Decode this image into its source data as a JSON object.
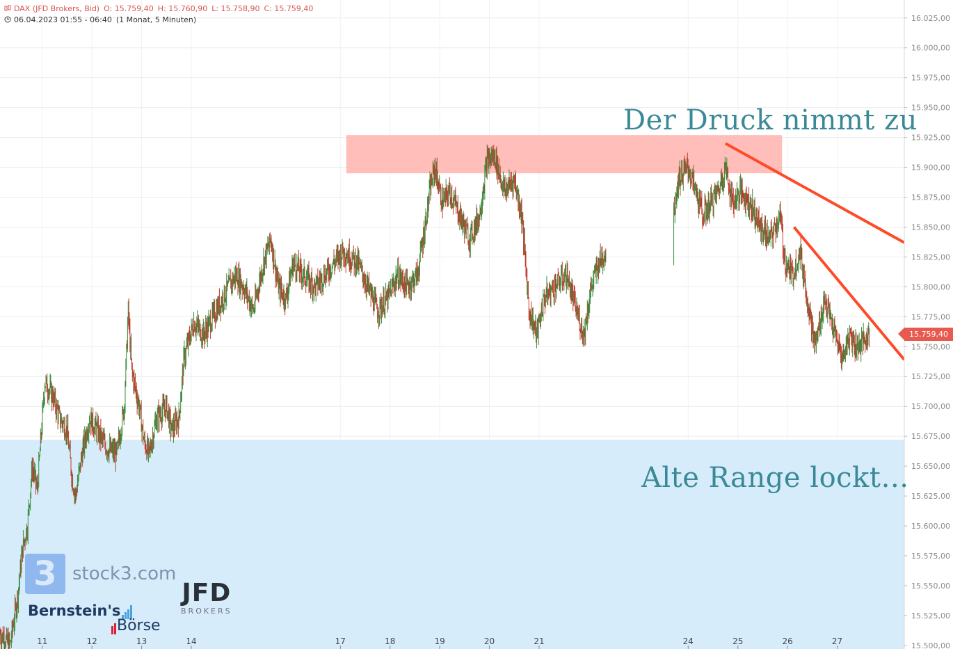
{
  "header": {
    "instrument": "DAX (JFD Brokers, Bid)",
    "open": "O: 15.759,40",
    "high": "H: 15.760,90",
    "low": "L: 15.758,90",
    "close": "C: 15.759,40",
    "range": "06.04.2023 01:55 - 06:40",
    "interval": "(1 Monat, 5 Minuten)"
  },
  "annotations": {
    "top": "Der Druck nimmt zu",
    "bottom": "Alte Range lockt…"
  },
  "last_price": "15.759,40",
  "logos": {
    "stock3_mark": "3",
    "stock3_text": "stock3.com",
    "bernstein_line1": "Bernstein's",
    "bernstein_line2": "Börse",
    "jfd_line1": "JFD",
    "jfd_line2": "BROKERS"
  },
  "colors": {
    "up_candle": "#3a8a3a",
    "down_candle": "#c0392b",
    "resistance_zone": "#ffb3ad",
    "support_zone": "#d6ecfb",
    "trendline": "#ff4a28",
    "annotation_text": "#3a8996",
    "price_tag": "#e85a4f"
  },
  "chart_data": {
    "type": "candlestick",
    "x_tick_labels": [
      "11",
      "12",
      "13",
      "14",
      "17",
      "18",
      "19",
      "20",
      "21",
      "24",
      "25",
      "26",
      "27"
    ],
    "y_ticks": [
      15500,
      15525,
      15550,
      15575,
      15600,
      15625,
      15650,
      15675,
      15700,
      15725,
      15750,
      15775,
      15800,
      15825,
      15850,
      15875,
      15900,
      15925,
      15950,
      15975,
      16000,
      16025
    ],
    "y_tick_labels": [
      "15.500,00",
      "15.525,00",
      "15.550,00",
      "15.575,00",
      "15.600,00",
      "15.625,00",
      "15.650,00",
      "15.675,00",
      "15.700,00",
      "15.725,00",
      "15.750,00",
      "15.775,00",
      "15.800,00",
      "15.825,00",
      "15.850,00",
      "15.875,00",
      "15.900,00",
      "15.925,00",
      "15.950,00",
      "15.975,00",
      "16.000,00",
      "16.025,00"
    ],
    "ylim": [
      15497,
      16040
    ],
    "x_domain": [
      10.1,
      28.3
    ],
    "zones": [
      {
        "kind": "resistance",
        "x_from": 17.07,
        "x_to": 25.84,
        "y_from": 15895,
        "y_to": 15927
      },
      {
        "kind": "support",
        "x_from": 10.1,
        "x_to": 28.3,
        "y_from": 15497,
        "y_to": 15672
      }
    ],
    "trendlines": [
      {
        "x1": 24.7,
        "y1": 15920,
        "x2": 28.3,
        "y2": 15837
      },
      {
        "x1": 26.08,
        "y1": 15850,
        "x2": 28.3,
        "y2": 15739
      }
    ],
    "price_path": [
      [
        10.1,
        15510
      ],
      [
        10.3,
        15500
      ],
      [
        10.45,
        15540
      ],
      [
        10.55,
        15580
      ],
      [
        10.65,
        15600
      ],
      [
        10.75,
        15650
      ],
      [
        10.85,
        15630
      ],
      [
        11.0,
        15720
      ],
      [
        11.15,
        15710
      ],
      [
        11.3,
        15690
      ],
      [
        11.45,
        15680
      ],
      [
        11.55,
        15640
      ],
      [
        11.62,
        15625
      ],
      [
        11.75,
        15660
      ],
      [
        11.9,
        15690
      ],
      [
        12.05,
        15680
      ],
      [
        12.25,
        15665
      ],
      [
        12.45,
        15660
      ],
      [
        12.6,
        15700
      ],
      [
        12.68,
        15780
      ],
      [
        12.75,
        15730
      ],
      [
        12.9,
        15700
      ],
      [
        13.0,
        15670
      ],
      [
        13.1,
        15660
      ],
      [
        13.25,
        15690
      ],
      [
        13.45,
        15700
      ],
      [
        13.55,
        15680
      ],
      [
        13.7,
        15690
      ],
      [
        13.8,
        15740
      ],
      [
        14.0,
        15770
      ],
      [
        14.2,
        15760
      ],
      [
        14.45,
        15780
      ],
      [
        14.7,
        15800
      ],
      [
        14.85,
        15810
      ],
      [
        15.0,
        15800
      ],
      [
        15.2,
        15780
      ],
      [
        15.4,
        15820
      ],
      [
        15.55,
        15840
      ],
      [
        15.7,
        15800
      ],
      [
        15.85,
        15790
      ],
      [
        16.0,
        15820
      ],
      [
        16.2,
        15810
      ],
      [
        16.45,
        15800
      ],
      [
        17.0,
        15830
      ],
      [
        17.3,
        15820
      ],
      [
        17.5,
        15800
      ],
      [
        17.7,
        15780
      ],
      [
        17.9,
        15790
      ],
      [
        18.1,
        15810
      ],
      [
        18.3,
        15800
      ],
      [
        18.5,
        15810
      ],
      [
        18.65,
        15850
      ],
      [
        18.75,
        15880
      ],
      [
        18.85,
        15900
      ],
      [
        19.0,
        15870
      ],
      [
        19.15,
        15880
      ],
      [
        19.35,
        15860
      ],
      [
        19.55,
        15840
      ],
      [
        19.75,
        15860
      ],
      [
        19.9,
        15905
      ],
      [
        20.05,
        15910
      ],
      [
        20.25,
        15880
      ],
      [
        20.45,
        15890
      ],
      [
        20.6,
        15860
      ],
      [
        20.75,
        15780
      ],
      [
        20.9,
        15760
      ],
      [
        21.05,
        15790
      ],
      [
        21.25,
        15800
      ],
      [
        21.5,
        15810
      ],
      [
        21.7,
        15780
      ],
      [
        21.85,
        15760
      ],
      [
        22.0,
        15800
      ],
      [
        22.15,
        15820
      ],
      [
        22.3,
        15830
      ],
      [
        23.65,
        15860
      ],
      [
        23.75,
        15890
      ],
      [
        23.95,
        15900
      ],
      [
        24.1,
        15880
      ],
      [
        24.25,
        15860
      ],
      [
        24.4,
        15870
      ],
      [
        24.55,
        15880
      ],
      [
        24.7,
        15900
      ],
      [
        24.85,
        15870
      ],
      [
        25.0,
        15880
      ],
      [
        25.2,
        15870
      ],
      [
        25.4,
        15850
      ],
      [
        25.6,
        15840
      ],
      [
        25.8,
        15860
      ],
      [
        25.9,
        15820
      ],
      [
        26.05,
        15810
      ],
      [
        26.2,
        15830
      ],
      [
        26.35,
        15790
      ],
      [
        26.5,
        15750
      ],
      [
        26.7,
        15790
      ],
      [
        26.9,
        15760
      ],
      [
        27.05,
        15740
      ],
      [
        27.2,
        15760
      ],
      [
        27.35,
        15750
      ],
      [
        27.5,
        15755
      ],
      [
        27.6,
        15759
      ]
    ]
  }
}
